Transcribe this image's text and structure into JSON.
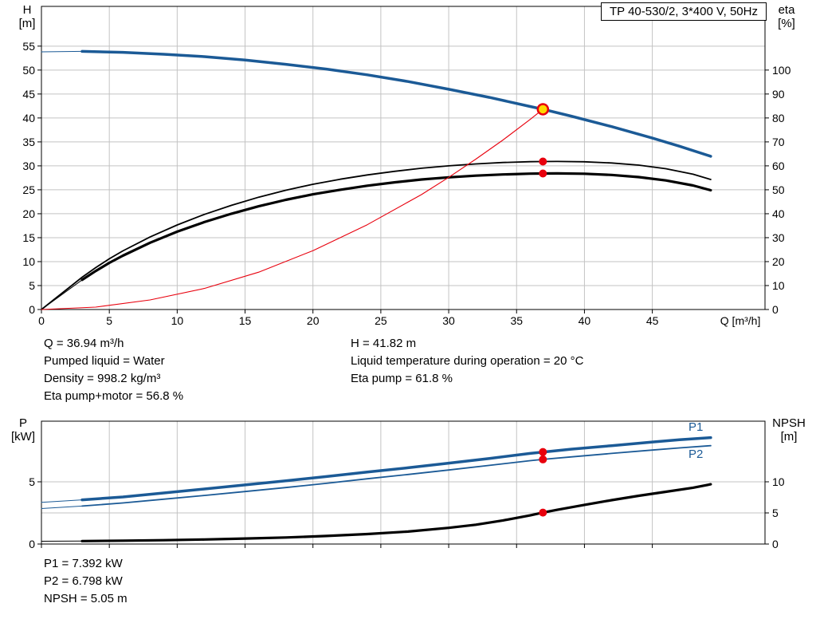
{
  "colors": {
    "blue": "#1b5a96",
    "red": "#e8000d",
    "black": "#000000",
    "grid": "#c3c3c3",
    "duty_fill": "#ffd800"
  },
  "axis_headers": {
    "top_left": [
      "H",
      "[m]"
    ],
    "top_right": [
      "eta",
      "[%]"
    ],
    "bottom_left": [
      "P",
      "[kW]"
    ],
    "bottom_right": [
      "NPSH",
      "[m]"
    ]
  },
  "info_top": {
    "left": [
      "Q = 36.94 m³/h",
      "Pumped liquid = Water",
      "Density = 998.2 kg/m³",
      "Eta pump+motor = 56.8 %"
    ],
    "right": [
      "H = 41.82 m",
      "Liquid temperature during operation = 20 °C",
      "Eta pump = 61.8 %"
    ]
  },
  "info_bottom": [
    "P1 = 7.392 kW",
    "P2 = 6.798 kW",
    "NPSH = 5.05 m"
  ],
  "chart_data": [
    {
      "type": "line",
      "title": "TP 40-530/2, 3*400 V, 50Hz",
      "x_label": "Q [m³/h]",
      "x_label_at": 50,
      "x_ticks": [
        0,
        5,
        10,
        15,
        20,
        25,
        30,
        35,
        40,
        45
      ],
      "x_max": 53.3,
      "show_x_tick_labels": true,
      "grid_from": "left",
      "y_left": {
        "label": "H [m]",
        "ticks": [
          0,
          5,
          10,
          15,
          20,
          25,
          30,
          35,
          40,
          45,
          50,
          55
        ],
        "max": 63.3
      },
      "y_right": {
        "label": "eta [%]",
        "ticks": [
          0,
          10,
          20,
          30,
          40,
          50,
          60,
          70,
          80,
          90,
          100
        ],
        "ratio_to_left": 0.5
      },
      "duty_point": {
        "Q": 36.94,
        "H": 41.82,
        "eta_pump": 61.8,
        "eta_pump_motor": 56.8
      },
      "series": [
        {
          "name": "eta-pump",
          "color": "black",
          "width": 1.8,
          "axis": "right",
          "points": [
            [
              0,
              0
            ],
            [
              1,
              4.5
            ],
            [
              2,
              9
            ],
            [
              3,
              13.5
            ],
            [
              4,
              17.5
            ],
            [
              5,
              21.2
            ],
            [
              6,
              24.5
            ],
            [
              8,
              30.3
            ],
            [
              10,
              35.3
            ],
            [
              12,
              39.7
            ],
            [
              14,
              43.5
            ],
            [
              16,
              46.9
            ],
            [
              18,
              49.8
            ],
            [
              20,
              52.3
            ],
            [
              22,
              54.4
            ],
            [
              24,
              56.2
            ],
            [
              26,
              57.7
            ],
            [
              28,
              59.0
            ],
            [
              30,
              60.0
            ],
            [
              32,
              60.8
            ],
            [
              34,
              61.4
            ],
            [
              36,
              61.75
            ],
            [
              36.94,
              61.8
            ],
            [
              38,
              61.85
            ],
            [
              40,
              61.7
            ],
            [
              42,
              61.2
            ],
            [
              44,
              60.3
            ],
            [
              46,
              58.8
            ],
            [
              48,
              56.5
            ],
            [
              49.3,
              54.3
            ]
          ]
        },
        {
          "name": "eta-pump-motor-lead",
          "color": "black",
          "width": 1,
          "axis": "right",
          "points": [
            [
              0,
              0
            ],
            [
              3,
              12.4
            ]
          ]
        },
        {
          "name": "eta-pump-motor",
          "color": "black",
          "width": 3.2,
          "axis": "right",
          "points": [
            [
              3,
              12.4
            ],
            [
              4,
              16.1
            ],
            [
              5,
              19.5
            ],
            [
              6,
              22.5
            ],
            [
              8,
              27.9
            ],
            [
              10,
              32.5
            ],
            [
              12,
              36.5
            ],
            [
              14,
              40.0
            ],
            [
              16,
              43.1
            ],
            [
              18,
              45.8
            ],
            [
              20,
              48.1
            ],
            [
              22,
              50.0
            ],
            [
              24,
              51.7
            ],
            [
              26,
              53.1
            ],
            [
              28,
              54.3
            ],
            [
              30,
              55.2
            ],
            [
              32,
              55.9
            ],
            [
              34,
              56.4
            ],
            [
              36,
              56.75
            ],
            [
              36.94,
              56.8
            ],
            [
              38,
              56.85
            ],
            [
              40,
              56.7
            ],
            [
              42,
              56.2
            ],
            [
              44,
              55.3
            ],
            [
              46,
              53.9
            ],
            [
              48,
              51.8
            ],
            [
              49.3,
              49.8
            ]
          ]
        },
        {
          "name": "system-curve",
          "color": "red",
          "width": 1.1,
          "axis": "left",
          "points": [
            [
              0,
              0
            ],
            [
              4,
              0.5
            ],
            [
              8,
              2.0
            ],
            [
              12,
              4.4
            ],
            [
              16,
              7.8
            ],
            [
              20,
              12.3
            ],
            [
              24,
              17.7
            ],
            [
              28,
              24.0
            ],
            [
              30,
              27.6
            ],
            [
              32,
              31.4
            ],
            [
              34,
              35.4
            ],
            [
              36,
              39.7
            ],
            [
              36.94,
              41.82
            ]
          ]
        },
        {
          "name": "head-lead",
          "color": "blue",
          "width": 1,
          "axis": "left",
          "points": [
            [
              0,
              53.8
            ],
            [
              3,
              53.9
            ]
          ]
        },
        {
          "name": "head",
          "color": "blue",
          "width": 3.5,
          "axis": "left",
          "points": [
            [
              3,
              53.9
            ],
            [
              6,
              53.7
            ],
            [
              9,
              53.3
            ],
            [
              12,
              52.8
            ],
            [
              15,
              52.1
            ],
            [
              18,
              51.2
            ],
            [
              21,
              50.2
            ],
            [
              24,
              49.0
            ],
            [
              27,
              47.6
            ],
            [
              30,
              46.0
            ],
            [
              33,
              44.3
            ],
            [
              36,
              42.4
            ],
            [
              36.94,
              41.82
            ],
            [
              39,
              40.4
            ],
            [
              42,
              38.2
            ],
            [
              45,
              35.8
            ],
            [
              47,
              34.1
            ],
            [
              49.3,
              32.0
            ]
          ]
        }
      ],
      "markers": [
        {
          "style": "duty",
          "x": 36.94,
          "value": 41.82,
          "axis": "left"
        },
        {
          "style": "dot",
          "x": 36.94,
          "value": 61.8,
          "axis": "right"
        },
        {
          "style": "dot",
          "x": 36.94,
          "value": 56.8,
          "axis": "right"
        }
      ]
    },
    {
      "type": "line",
      "x_ticks": [
        0,
        5,
        10,
        15,
        20,
        25,
        30,
        35,
        40,
        45
      ],
      "x_max": 53.3,
      "show_x_tick_labels": false,
      "grid_from": "right",
      "y_left": {
        "label": "P [kW]",
        "ticks": [
          0,
          5
        ],
        "max": 9.87
      },
      "y_right": {
        "label": "NPSH [m]",
        "ticks": [
          0,
          5,
          10
        ],
        "ratio_to_left": 0.5
      },
      "duty_point": {
        "Q": 36.94,
        "P1": 7.392,
        "P2": 6.798,
        "NPSH": 5.05
      },
      "annotations": [
        {
          "text": "P1"
        },
        {
          "text": "P2"
        }
      ],
      "series": [
        {
          "name": "npsh-lead",
          "color": "black",
          "width": 1,
          "axis": "right",
          "points": [
            [
              0,
              0.45
            ],
            [
              3,
              0.48
            ]
          ]
        },
        {
          "name": "npsh",
          "color": "black",
          "width": 3.2,
          "axis": "right",
          "points": [
            [
              3,
              0.48
            ],
            [
              6,
              0.54
            ],
            [
              9,
              0.62
            ],
            [
              12,
              0.73
            ],
            [
              15,
              0.88
            ],
            [
              18,
              1.05
            ],
            [
              21,
              1.3
            ],
            [
              24,
              1.6
            ],
            [
              27,
              2.0
            ],
            [
              30,
              2.6
            ],
            [
              32,
              3.1
            ],
            [
              34,
              3.8
            ],
            [
              36,
              4.6
            ],
            [
              36.94,
              5.05
            ],
            [
              38,
              5.5
            ],
            [
              40,
              6.3
            ],
            [
              42,
              7.05
            ],
            [
              44,
              7.75
            ],
            [
              46,
              8.4
            ],
            [
              48,
              9.05
            ],
            [
              49.3,
              9.6
            ]
          ]
        },
        {
          "name": "p2-lead",
          "color": "blue",
          "width": 1,
          "axis": "left",
          "points": [
            [
              0,
              2.85
            ],
            [
              3,
              3.05
            ]
          ]
        },
        {
          "name": "p2",
          "color": "blue",
          "width": 1.8,
          "axis": "left",
          "points": [
            [
              3,
              3.05
            ],
            [
              6,
              3.3
            ],
            [
              9,
              3.6
            ],
            [
              12,
              3.9
            ],
            [
              15,
              4.22
            ],
            [
              18,
              4.54
            ],
            [
              21,
              4.88
            ],
            [
              24,
              5.24
            ],
            [
              27,
              5.59
            ],
            [
              30,
              5.95
            ],
            [
              33,
              6.32
            ],
            [
              36,
              6.7
            ],
            [
              36.94,
              6.798
            ],
            [
              39,
              7.0
            ],
            [
              42,
              7.28
            ],
            [
              45,
              7.55
            ],
            [
              47,
              7.72
            ],
            [
              49.3,
              7.9
            ]
          ]
        },
        {
          "name": "p1-lead",
          "color": "blue",
          "width": 1,
          "axis": "left",
          "points": [
            [
              0,
              3.35
            ],
            [
              3,
              3.55
            ]
          ]
        },
        {
          "name": "p1",
          "color": "blue",
          "width": 3.5,
          "axis": "left",
          "points": [
            [
              3,
              3.55
            ],
            [
              6,
              3.78
            ],
            [
              9,
              4.1
            ],
            [
              12,
              4.42
            ],
            [
              15,
              4.75
            ],
            [
              18,
              5.08
            ],
            [
              21,
              5.42
            ],
            [
              24,
              5.78
            ],
            [
              27,
              6.13
            ],
            [
              30,
              6.5
            ],
            [
              33,
              6.88
            ],
            [
              36,
              7.28
            ],
            [
              36.94,
              7.392
            ],
            [
              39,
              7.62
            ],
            [
              42,
              7.9
            ],
            [
              45,
              8.2
            ],
            [
              47,
              8.38
            ],
            [
              49.3,
              8.55
            ]
          ]
        }
      ],
      "markers": [
        {
          "style": "dot",
          "x": 36.94,
          "value": 7.392,
          "axis": "left"
        },
        {
          "style": "dot",
          "x": 36.94,
          "value": 6.798,
          "axis": "left"
        },
        {
          "style": "dot",
          "x": 36.94,
          "value": 5.05,
          "axis": "right"
        }
      ]
    }
  ]
}
